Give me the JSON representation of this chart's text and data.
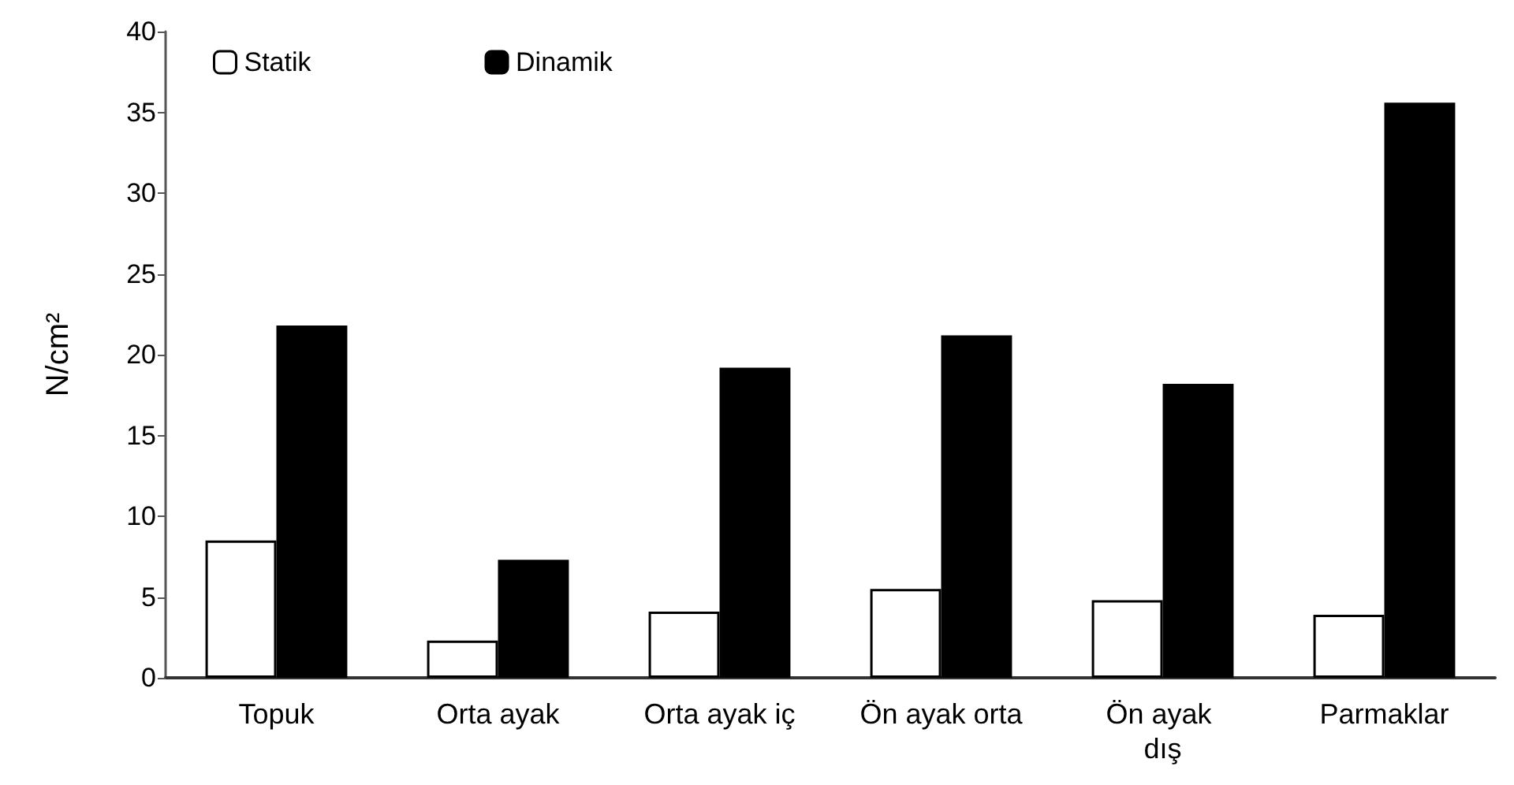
{
  "chart_data": {
    "type": "bar",
    "ylabel": "N/cm²",
    "categories": [
      "Topuk",
      "Orta ayak",
      "Orta ayak iç",
      "Ön ayak orta",
      "Ön ayak dış",
      "Parmaklar"
    ],
    "series": [
      {
        "name": "Statik",
        "color": "#ffffff",
        "values": [
          8.5,
          2.3,
          4.1,
          5.5,
          4.8,
          3.9
        ]
      },
      {
        "name": "Dinamik",
        "color": "#000000",
        "values": [
          21.8,
          7.3,
          19.2,
          21.2,
          18.2,
          35.6
        ]
      }
    ],
    "ylim": [
      0,
      40
    ],
    "yticks": [
      0,
      5,
      10,
      15,
      20,
      25,
      30,
      35,
      40
    ],
    "grid": false,
    "legend": "top left"
  }
}
